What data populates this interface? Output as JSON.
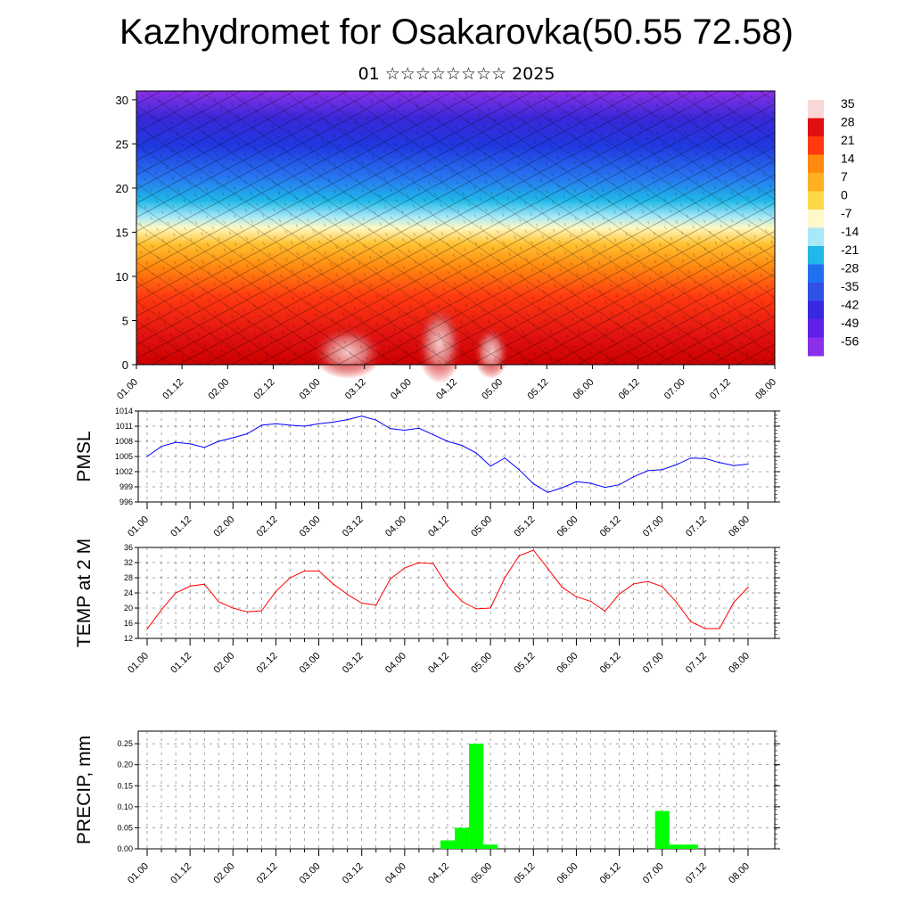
{
  "title": "Kazhydromet for Osakarovka(50.55 72.58)",
  "subtitle": "01 ☆☆☆☆☆☆☆☆ 2025",
  "colors": {
    "pmsl_line": "#0000ff",
    "temp_line": "#ff0000",
    "precip_bar": "#00ff00",
    "grid": "#000000"
  },
  "x_tick_labels": [
    "01.00",
    "01.12",
    "02.00",
    "02.12",
    "03.00",
    "03.12",
    "04.00",
    "04.12",
    "05.00",
    "05.12",
    "06.00",
    "06.12",
    "07.00",
    "07.12",
    "08.00"
  ],
  "chart_data": [
    {
      "type": "heatmap",
      "name": "cross-section",
      "xlim": [
        0,
        42
      ],
      "ylim": [
        0,
        31
      ],
      "y_ticks": [
        0,
        5,
        10,
        15,
        20,
        25,
        30
      ],
      "y_tick_labels": [
        "0",
        "5",
        "10",
        "15",
        "20",
        "25",
        "30"
      ],
      "colorbar_labels": [
        "35",
        "28",
        "21",
        "14",
        "7",
        "0",
        "-7",
        "-14",
        "-21",
        "-28",
        "-35",
        "-42",
        "-49",
        "-56"
      ],
      "colorbar_colors": [
        "#fbd8d8",
        "#e01010",
        "#ff3a10",
        "#ff8a10",
        "#ffb020",
        "#ffd84a",
        "#fff8c8",
        "#a8e8f8",
        "#20b8e8",
        "#2070f0",
        "#3050e8",
        "#3828e0",
        "#6020e8",
        "#8a30e8"
      ],
      "grid": true
    },
    {
      "type": "line",
      "ylabel": "PMSL",
      "ylim": [
        996,
        1014
      ],
      "y_ticks": [
        996,
        999,
        1002,
        1005,
        1008,
        1011,
        1014
      ],
      "y_tick_labels": [
        "996",
        "999",
        "1002",
        "1005",
        "1008",
        "1011",
        "1014"
      ],
      "grid": true,
      "x": [
        0,
        1,
        2,
        3,
        4,
        5,
        6,
        7,
        8,
        9,
        10,
        11,
        12,
        13,
        14,
        15,
        16,
        17,
        18,
        19,
        20,
        21,
        22,
        23,
        24,
        25,
        26,
        27,
        28,
        29,
        30,
        31,
        32,
        33,
        34,
        35,
        36,
        37,
        38,
        39,
        40,
        41,
        42
      ],
      "values": [
        1005,
        1007,
        1007.8,
        1007.5,
        1006.8,
        1008,
        1008.7,
        1009.5,
        1011.2,
        1011.5,
        1011.2,
        1011,
        1011.5,
        1011.8,
        1012.3,
        1013,
        1012.2,
        1010.5,
        1010.2,
        1010.6,
        1009.3,
        1008,
        1007.2,
        1005.7,
        1003.1,
        1004.7,
        1002.4,
        999.6,
        997.9,
        998.8,
        1000,
        999.7,
        998.9,
        999.4,
        1001,
        1002.2,
        1002.4,
        1003.4,
        1004.7,
        1004.6,
        1003.8,
        1003.2,
        1003.5
      ]
    },
    {
      "type": "line",
      "ylabel": "TEMP at 2 M",
      "ylim": [
        12,
        36
      ],
      "y_ticks": [
        12,
        16,
        20,
        24,
        28,
        32,
        36
      ],
      "y_tick_labels": [
        "12",
        "16",
        "20",
        "24",
        "28",
        "32",
        "36"
      ],
      "grid": true,
      "x": [
        0,
        1,
        2,
        3,
        4,
        5,
        6,
        7,
        8,
        9,
        10,
        11,
        12,
        13,
        14,
        15,
        16,
        17,
        18,
        19,
        20,
        21,
        22,
        23,
        24,
        25,
        26,
        27,
        28,
        29,
        30,
        31,
        32,
        33,
        34,
        35,
        36,
        37,
        38,
        39,
        40,
        41,
        42
      ],
      "values": [
        14.5,
        19.5,
        24,
        25.8,
        26.3,
        21.7,
        20,
        19,
        19.3,
        24.4,
        28,
        29.8,
        29.8,
        26.4,
        23.6,
        21.3,
        20.8,
        27.7,
        30.6,
        32,
        31.7,
        25.8,
        21.8,
        19.8,
        20,
        28,
        33.8,
        35.3,
        30.5,
        25.5,
        23,
        21.8,
        19.2,
        23.7,
        26.4,
        27,
        25.7,
        21.5,
        16.4,
        14.6,
        14.6,
        21.5,
        25.5
      ]
    },
    {
      "type": "bar",
      "ylabel": "PRECIP, mm",
      "ylim": [
        0,
        0.28
      ],
      "y_ticks": [
        0,
        0.05,
        0.1,
        0.15,
        0.2,
        0.25
      ],
      "y_tick_labels": [
        "0.00",
        "0.05",
        "0.10",
        "0.15",
        "0.20",
        "0.25"
      ],
      "grid": true,
      "x": [
        21,
        22,
        23,
        24,
        36,
        37,
        38
      ],
      "values": [
        0.02,
        0.05,
        0.25,
        0.01,
        0.09,
        0.01,
        0.01
      ]
    }
  ]
}
